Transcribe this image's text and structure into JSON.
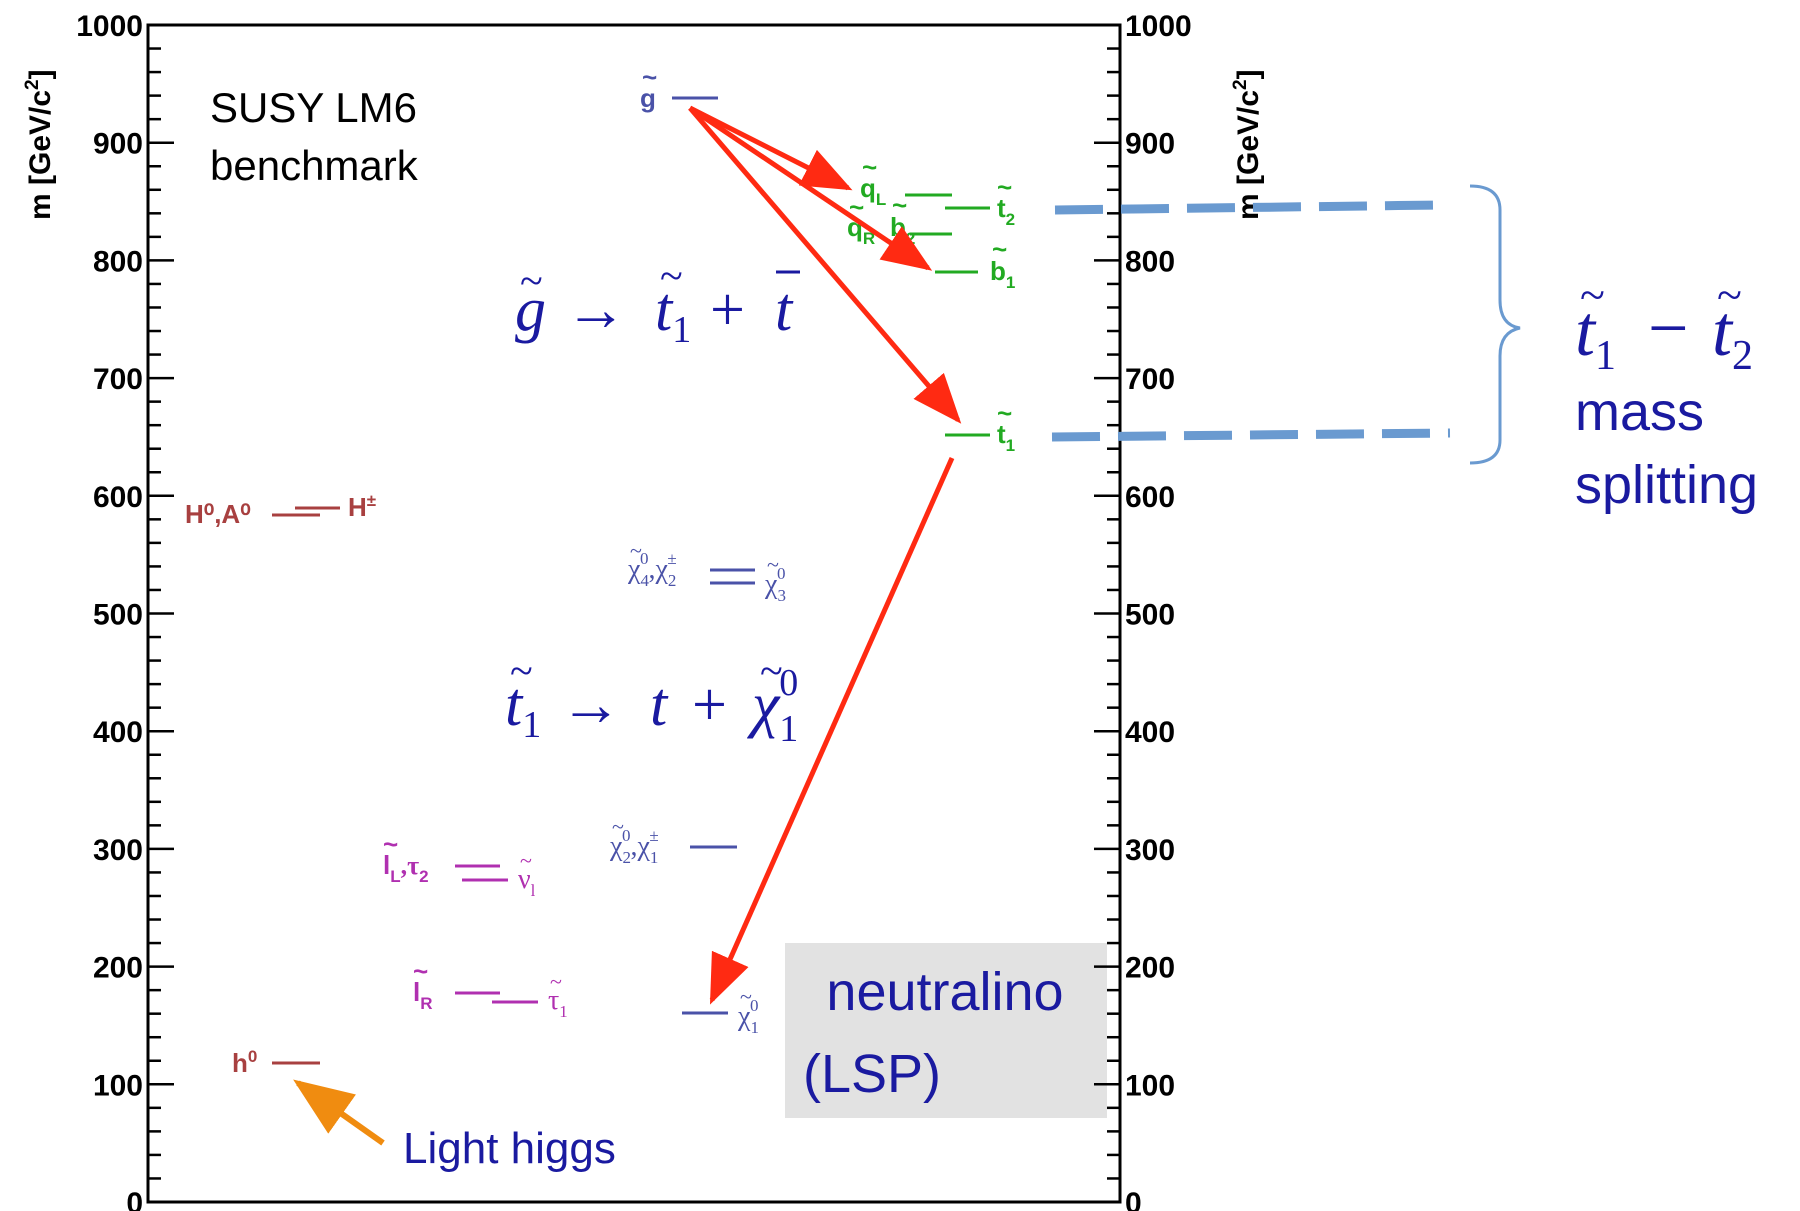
{
  "colors": {
    "axis": "#000000",
    "gluino": "#4a52a8",
    "squark": "#22aa22",
    "higgs": "#a84040",
    "slepton": "#b030b0",
    "gaugino": "#4a52a8",
    "decay_arrow": "#ff2a12",
    "higgs_arrow": "#f08c10",
    "splitting": "#6a9ad0",
    "annotation_text": "#1a1aa0",
    "lsp_box": "#e2e2e2"
  },
  "axes": {
    "ylim": [
      0,
      1000
    ],
    "ticks": [
      "0",
      "100",
      "200",
      "300",
      "400",
      "500",
      "600",
      "700",
      "800",
      "900",
      "1000"
    ],
    "left_title": "m [GeV/c",
    "right_title": "m [GeV/c",
    "title_sup": "2",
    "title_close": "]"
  },
  "benchmark": {
    "line1": "SUSY LM6",
    "line2": "benchmark"
  },
  "levels": [
    {
      "id": "gluino",
      "mass": 935,
      "color": "#4a52a8",
      "base": "g",
      "tilde": "~",
      "sub": "",
      "sup": "",
      "side": "left"
    },
    {
      "id": "squark-L",
      "mass": 852,
      "color": "#22aa22",
      "base": "q",
      "tilde": "~",
      "sub": "L",
      "sup": "",
      "side": "left"
    },
    {
      "id": "stop-2",
      "mass": 843,
      "color": "#22aa22",
      "base": "t",
      "tilde": "~",
      "sub": "2",
      "sup": "",
      "side": "right"
    },
    {
      "id": "squark-R",
      "mass": 820,
      "color": "#22aa22",
      "base": "q",
      "tilde": "~",
      "sub": "R",
      "sup": "",
      "side": "left"
    },
    {
      "id": "sbottom-2",
      "mass": 820,
      "color": "#22aa22",
      "base": "b",
      "tilde": "~",
      "sub": "2",
      "sup": "",
      "side": "left"
    },
    {
      "id": "sbottom-1",
      "mass": 790,
      "color": "#22aa22",
      "base": "b",
      "tilde": "~",
      "sub": "1",
      "sup": "",
      "side": "right"
    },
    {
      "id": "stop-1",
      "mass": 652,
      "color": "#22aa22",
      "base": "t",
      "tilde": "~",
      "sub": "1",
      "sup": "",
      "side": "right"
    },
    {
      "id": "heavy-higgs",
      "mass": 585,
      "color": "#a84040",
      "base": "H",
      "tilde": "",
      "sub": "",
      "sup": "0",
      "side": "left",
      "text": "H⁰,A⁰"
    },
    {
      "id": "charged-higgs",
      "mass": 590,
      "color": "#a84040",
      "base": "H",
      "tilde": "",
      "sub": "",
      "sup": "±",
      "side": "right"
    },
    {
      "id": "neutralino-4",
      "mass": 530,
      "color": "#4a52a8",
      "base": "χ",
      "tilde": "~",
      "sub": "4",
      "sup": "0",
      "side": "left"
    },
    {
      "id": "neutralino-3",
      "mass": 520,
      "color": "#4a52a8",
      "base": "χ",
      "tilde": "~",
      "sub": "3",
      "sup": "0",
      "side": "right"
    },
    {
      "id": "neutralino-2",
      "mass": 300,
      "color": "#4a52a8",
      "base": "χ",
      "tilde": "~",
      "sub": "2",
      "sup": "0",
      "side": "left"
    },
    {
      "id": "slepton-L",
      "mass": 285,
      "color": "#b030b0",
      "base": "l",
      "tilde": "~",
      "sub": "L",
      "sup": "",
      "side": "left"
    },
    {
      "id": "sneutrino",
      "mass": 275,
      "color": "#b030b0",
      "base": "ν",
      "tilde": "~",
      "sub": "l",
      "sup": "",
      "side": "right"
    },
    {
      "id": "slepton-R",
      "mass": 175,
      "color": "#b030b0",
      "base": "l",
      "tilde": "~",
      "sub": "R",
      "sup": "",
      "side": "left"
    },
    {
      "id": "stau-1",
      "mass": 167,
      "color": "#b030b0",
      "base": "τ",
      "tilde": "~",
      "sub": "1",
      "sup": "",
      "side": "right"
    },
    {
      "id": "neutralino-1",
      "mass": 160,
      "color": "#4a52a8",
      "base": "χ",
      "tilde": "~",
      "sub": "1",
      "sup": "0",
      "side": "right"
    },
    {
      "id": "light-higgs",
      "mass": 115,
      "color": "#a84040",
      "base": "h",
      "tilde": "",
      "sub": "",
      "sup": "0",
      "side": "left"
    }
  ],
  "decays": {
    "gluino_to_stop": {
      "lhs_base": "g",
      "arrow": "→",
      "rhs1_base": "t",
      "rhs1_sub": "1",
      "plus": "+",
      "rhs2_base": "t"
    },
    "stop_to_neutralino": {
      "lhs_base": "t",
      "lhs_sub": "1",
      "arrow": "→",
      "rhs1_base": "t",
      "plus": "+",
      "rhs2_base": "χ",
      "rhs2_sub": "1",
      "rhs2_sup": "0"
    }
  },
  "splitting": {
    "formula_base1": "t",
    "formula_sub1": "1",
    "minus": "−",
    "formula_base2": "t",
    "formula_sub2": "2",
    "line1": "mass",
    "line2": "splitting"
  },
  "lsp_box": {
    "line1": "neutralino",
    "line2": "(LSP)"
  },
  "light_higgs_label": "Light higgs"
}
